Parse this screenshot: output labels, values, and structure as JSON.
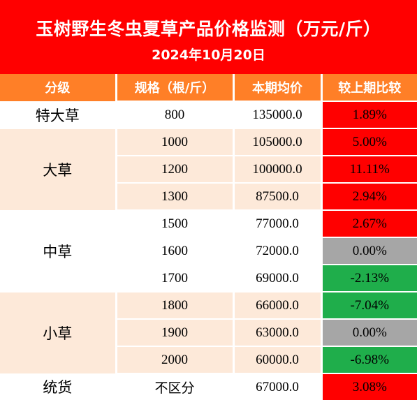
{
  "header": {
    "title": "玉树野生冬虫夏草产品价格监测（万元/斤）",
    "date": "2024年10月20日"
  },
  "columns": [
    "分级",
    "规格（根/斤）",
    "本期均价",
    "较上期比较"
  ],
  "colors": {
    "header_bg": "#ff0000",
    "column_header_bg": "#ff7f27",
    "row_light": "#fde9d9",
    "increase": "#ff0000",
    "no_change": "#a6a6a6",
    "decrease": "#1fae4b"
  },
  "groups": [
    {
      "grade": "特大草",
      "rows": [
        {
          "spec": "800",
          "price": "135000.0",
          "change": "1.89%"
        }
      ]
    },
    {
      "grade": "大草",
      "rows": [
        {
          "spec": "1000",
          "price": "105000.0",
          "change": "5.00%"
        },
        {
          "spec": "1200",
          "price": "100000.0",
          "change": "11.11%"
        },
        {
          "spec": "1300",
          "price": "87500.0",
          "change": "2.94%"
        }
      ]
    },
    {
      "grade": "中草",
      "rows": [
        {
          "spec": "1500",
          "price": "77000.0",
          "change": "2.67%"
        },
        {
          "spec": "1600",
          "price": "72000.0",
          "change": "0.00%"
        },
        {
          "spec": "1700",
          "price": "69000.0",
          "change": "-2.13%"
        }
      ]
    },
    {
      "grade": "小草",
      "rows": [
        {
          "spec": "1800",
          "price": "66000.0",
          "change": "-7.04%"
        },
        {
          "spec": "1900",
          "price": "63000.0",
          "change": "0.00%"
        },
        {
          "spec": "2000",
          "price": "60000.0",
          "change": "-6.98%"
        }
      ]
    },
    {
      "grade": "统货",
      "rows": [
        {
          "spec": "不区分",
          "price": "67000.0",
          "change": "3.08%"
        }
      ]
    }
  ]
}
